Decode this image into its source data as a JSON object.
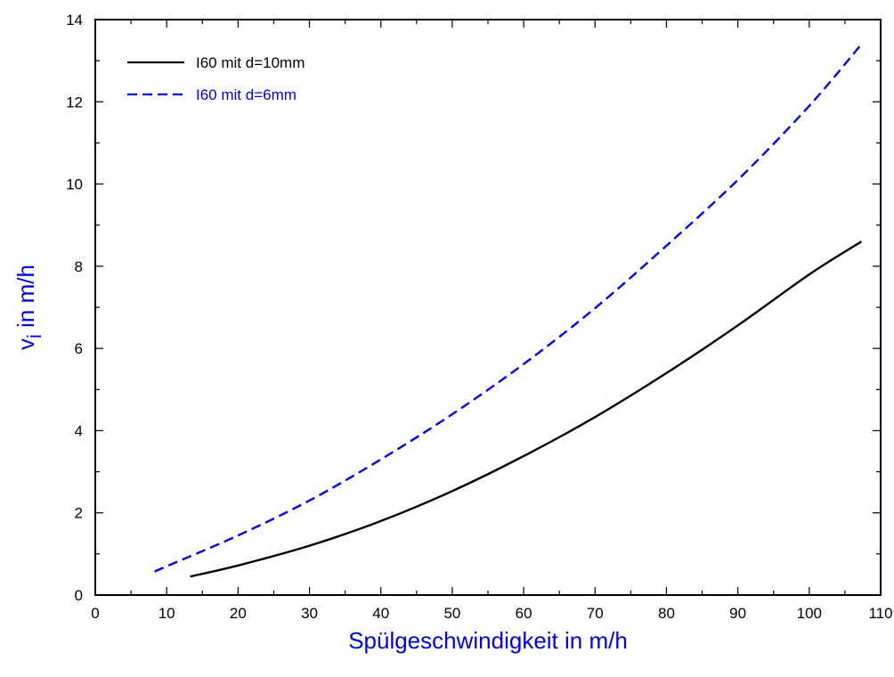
{
  "chart_data": {
    "type": "line",
    "title": "",
    "xlabel": "Spülgeschwindigkeit in m/h",
    "ylabel": {
      "main": "v",
      "subscript": "i",
      "rest": " in m/h"
    },
    "xlim": [
      0,
      110
    ],
    "ylim": [
      0,
      14
    ],
    "xticks": [
      0,
      10,
      20,
      30,
      40,
      50,
      60,
      70,
      80,
      90,
      100,
      110
    ],
    "yticks": [
      0,
      2,
      4,
      6,
      8,
      10,
      12,
      14
    ],
    "grid": false,
    "legend_position": "top-left",
    "label_color": "#0000dd",
    "series": [
      {
        "name": "I60 mit d=10mm",
        "color": "#000000",
        "dash": "solid",
        "x": [
          13.3,
          20,
          30,
          40,
          50,
          60,
          70,
          80,
          90,
          100,
          107.3
        ],
        "y": [
          0.45,
          0.72,
          1.2,
          1.8,
          2.53,
          3.38,
          4.33,
          5.4,
          6.56,
          7.8,
          8.6
        ]
      },
      {
        "name": "I60 mit d=6mm",
        "color": "#0000dd",
        "dash": "dashed",
        "x": [
          8.3,
          10,
          20,
          30,
          40,
          50,
          60,
          70,
          80,
          90,
          100,
          107.3
        ],
        "y": [
          0.57,
          0.7,
          1.45,
          2.3,
          3.3,
          4.4,
          5.62,
          6.98,
          8.5,
          10.1,
          11.9,
          13.4
        ]
      }
    ]
  }
}
